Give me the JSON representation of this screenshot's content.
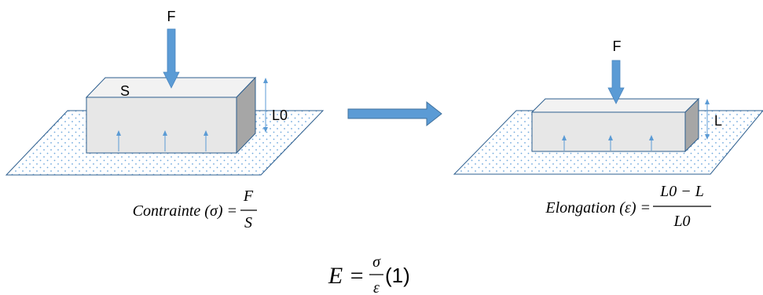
{
  "left": {
    "force_label": "F",
    "surface_label": "S",
    "height_label": "L0",
    "formula": {
      "name": "Contrainte (σ) = ",
      "numerator": "F",
      "denominator": "S"
    }
  },
  "right": {
    "force_label": "F",
    "height_label": "L",
    "formula": {
      "name": "Elongation (ε) = ",
      "numerator": "L0 − L",
      "denominator": "L0"
    }
  },
  "bottom_formula": {
    "lhs": "E = ",
    "numerator": "σ",
    "denominator": "ε",
    "tag": "(1)"
  },
  "colors": {
    "arrow_blue": "#5b9bd5",
    "box_front": "#e7e7e7",
    "box_top": "#f2f2f2",
    "box_side": "#a6a6a6",
    "box_edge": "#2e5f8f",
    "plane_dots": "#6fa8dc"
  }
}
